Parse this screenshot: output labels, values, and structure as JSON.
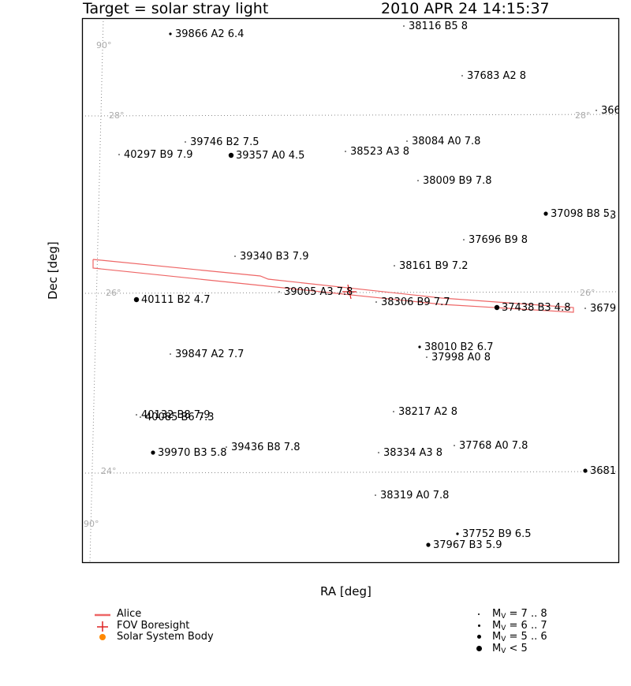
{
  "chart_data": {
    "type": "scatter",
    "title_left": "Target = solar stray light",
    "title_right": "2010 APR 24 14:15:37",
    "xlabel": "RA [deg]",
    "ylabel": "Dec [deg]",
    "grid_labels": {
      "ra_top": "90°",
      "ra_bottom": "90°",
      "dec28_left": "28°",
      "dec28_right": "28°",
      "dec26_left": "26°",
      "dec26_right": "26°",
      "dec24_left": "24°"
    },
    "stars": [
      {
        "label": "39866 A2 6.4",
        "mag": 6.4
      },
      {
        "label": "38116 B5 8",
        "mag": 8
      },
      {
        "label": "37683 A2 8",
        "mag": 8
      },
      {
        "label": "366",
        "mag": 8
      },
      {
        "label": "39746 B2 7.5",
        "mag": 7.5
      },
      {
        "label": "38084 A0 7.8",
        "mag": 7.8
      },
      {
        "label": "40297 B9 7.9",
        "mag": 7.9
      },
      {
        "label": "39357 A0 4.5",
        "mag": 4.5
      },
      {
        "label": "38523 A3 8",
        "mag": 8
      },
      {
        "label": "38009 B9 7.8",
        "mag": 7.8
      },
      {
        "label": "37098 B8 5.",
        "mag": 5.5
      },
      {
        "label": "3",
        "mag": 8
      },
      {
        "label": "37696 B9 8",
        "mag": 8
      },
      {
        "label": "39340 B3 7.9",
        "mag": 7.9
      },
      {
        "label": "38161 B9 7.2",
        "mag": 7.2
      },
      {
        "label": "39005 A3 7.8",
        "mag": 7.8
      },
      {
        "label": "40111 B2 4.7",
        "mag": 4.7
      },
      {
        "label": "38306 B9 7.7",
        "mag": 7.7
      },
      {
        "label": "37438 B3 4.8",
        "mag": 4.8
      },
      {
        "label": "3679",
        "mag": 8
      },
      {
        "label": "38010 B2 6.7",
        "mag": 6.7
      },
      {
        "label": "39847 A2 7.7",
        "mag": 7.7
      },
      {
        "label": "37998 A0 8",
        "mag": 8
      },
      {
        "label": "38217 A2 8",
        "mag": 8
      },
      {
        "label": "40132 B8 7.9",
        "mag": 7.9
      },
      {
        "label": "40085 B6 7.3",
        "mag": 7.3
      },
      {
        "label": "39436 B8 7.8",
        "mag": 7.8
      },
      {
        "label": "37768 A0 7.8",
        "mag": 7.8
      },
      {
        "label": "39970 B3 5.8",
        "mag": 5.8
      },
      {
        "label": "38334 A3 8",
        "mag": 8
      },
      {
        "label": "3681",
        "mag": 5.5
      },
      {
        "label": "38319 A0 7.8",
        "mag": 7.8
      },
      {
        "label": "37752 B9 6.5",
        "mag": 6.5
      },
      {
        "label": "37967 B3 5.9",
        "mag": 5.9
      }
    ],
    "legend": {
      "alice": "Alice",
      "boresight": "FOV Boresight",
      "ssb": "Solar System Body",
      "mag1_pre": "M",
      "mag1_sub": "V",
      "mag1_post": " = 7 .. 8",
      "mag2_pre": "M",
      "mag2_sub": "V",
      "mag2_post": " = 6 .. 7",
      "mag3_pre": "M",
      "mag3_sub": "V",
      "mag3_post": " = 5 .. 6",
      "mag4_pre": "M",
      "mag4_sub": "V",
      "mag4_post": " < 5"
    },
    "colors": {
      "alice": "#ee6666",
      "boresight": "#dd2222",
      "ssb": "#ff8800",
      "grid": "#888888",
      "grid_label": "#aaaaaa"
    }
  }
}
